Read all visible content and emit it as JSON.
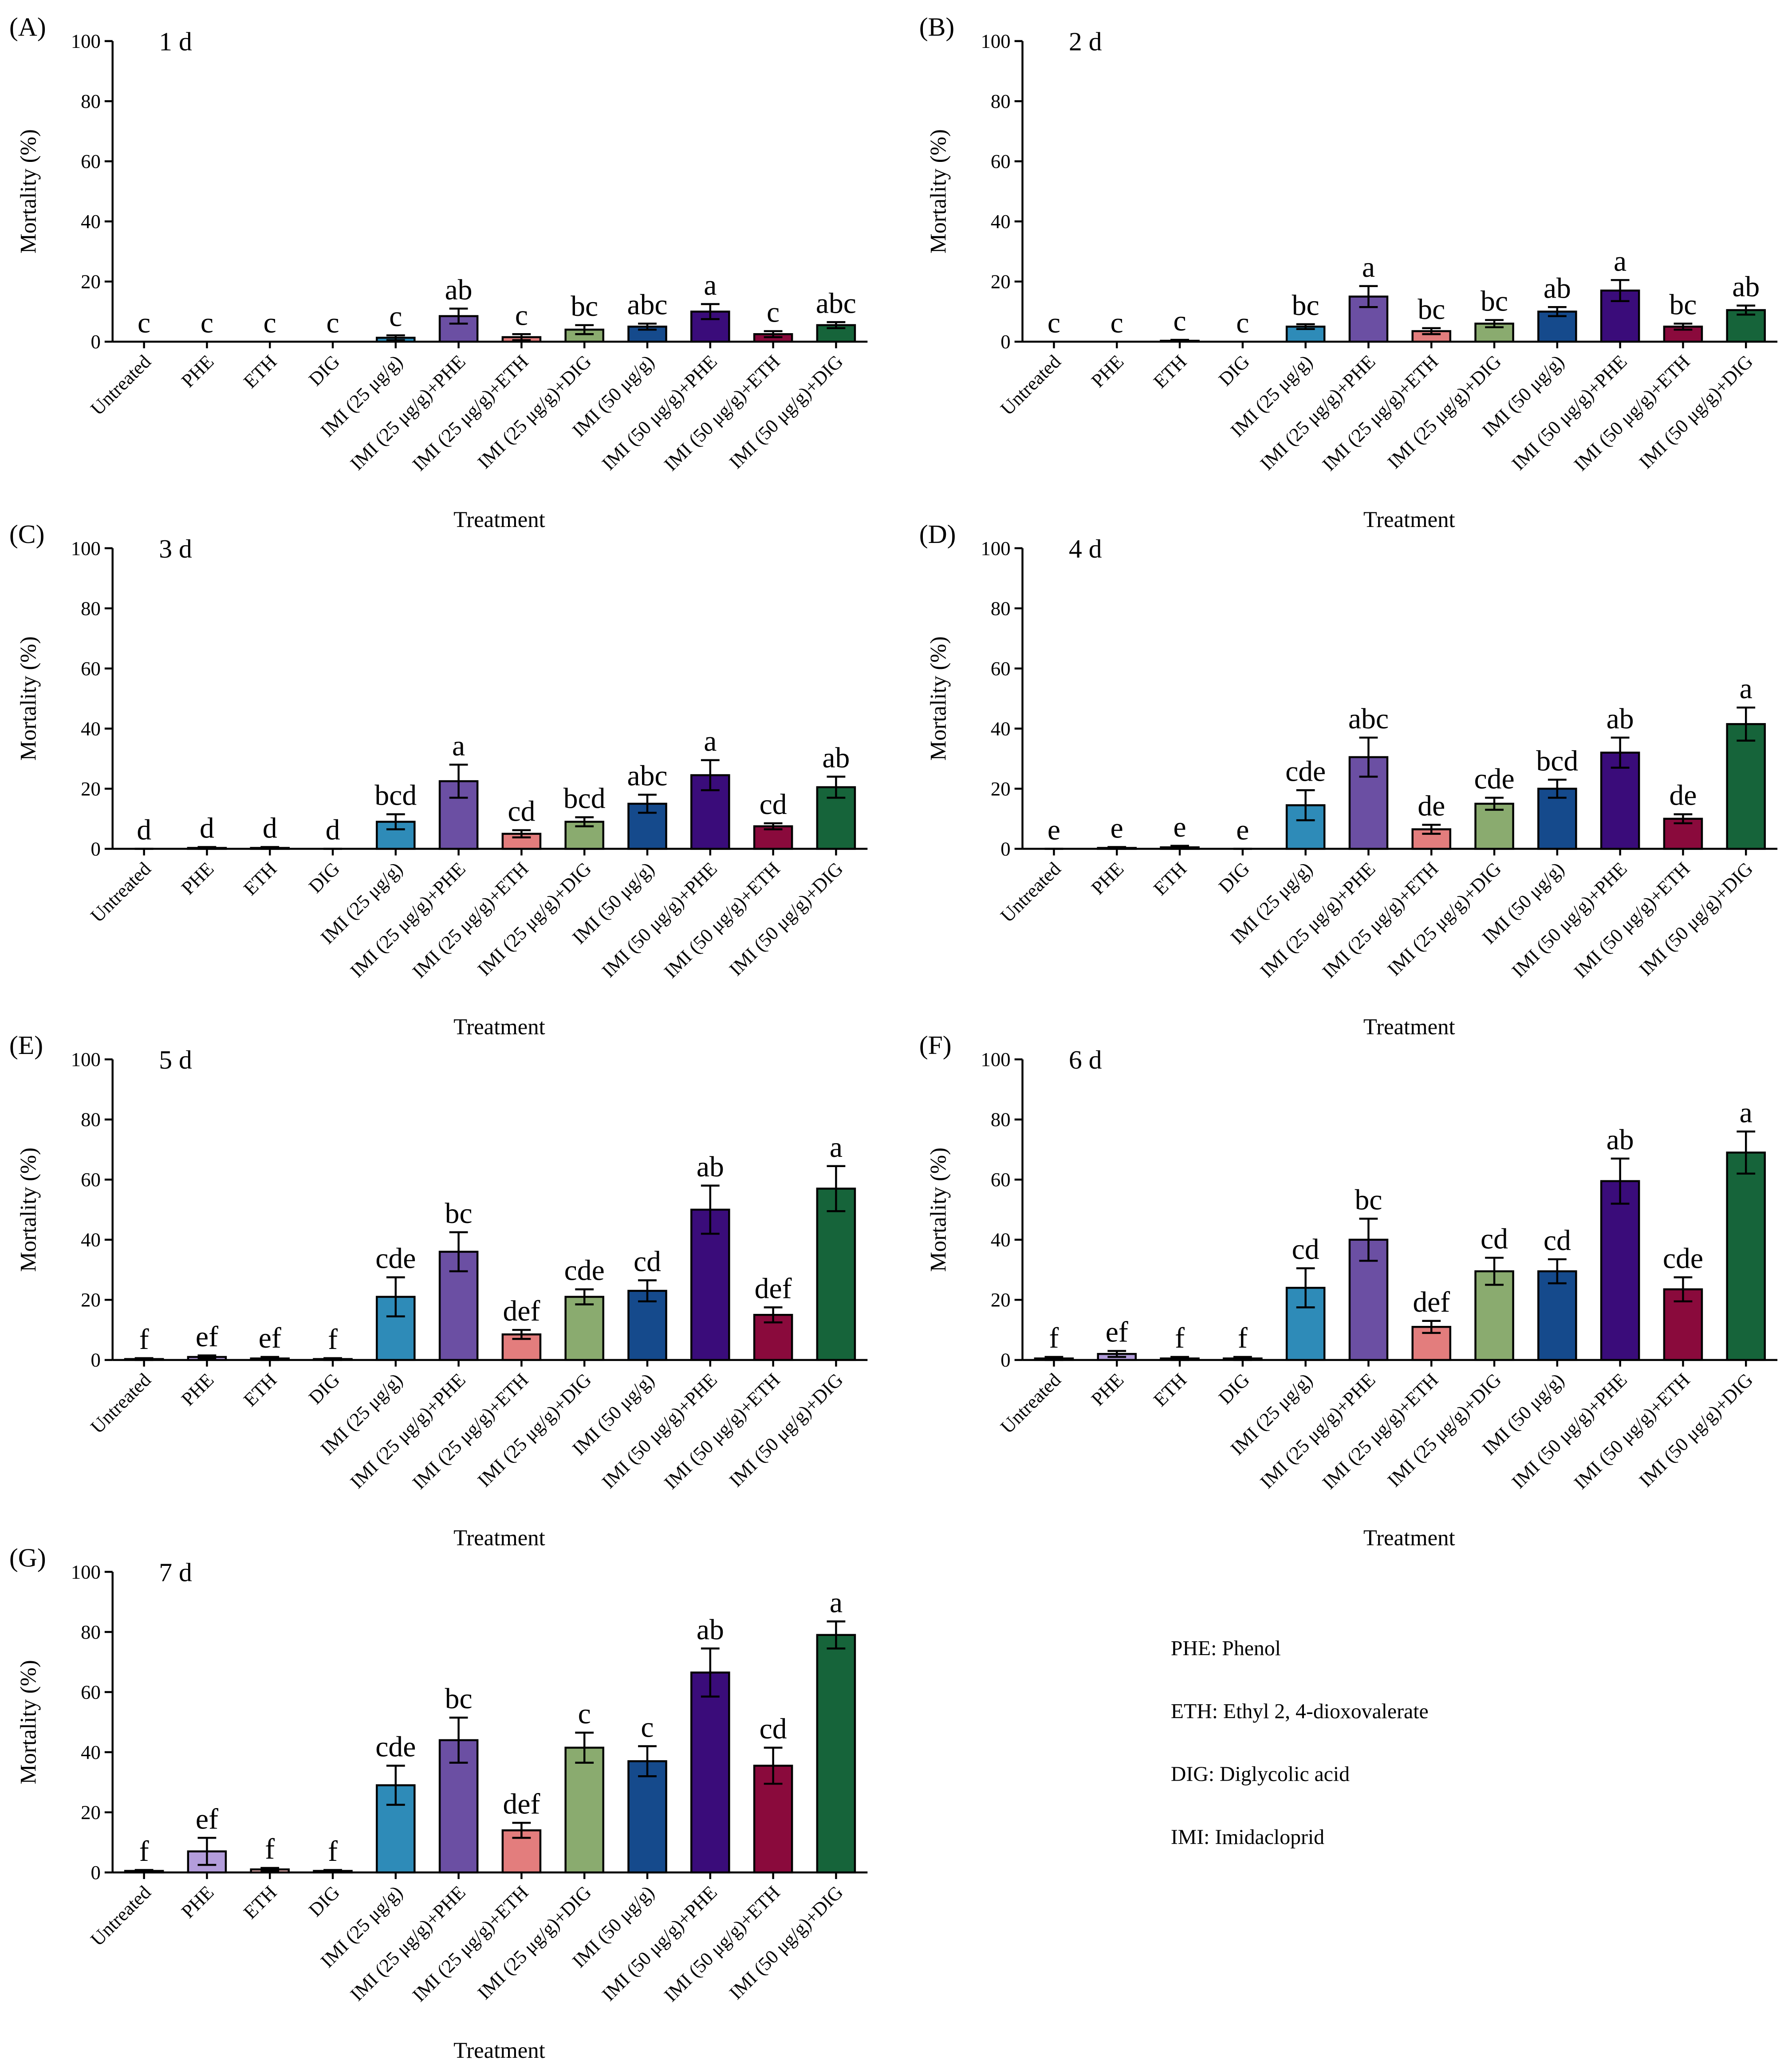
{
  "chart_data": [
    {
      "type": "bar",
      "panel": "(A)",
      "title": "1 d",
      "ylabel": "Mortality (%)",
      "xlabel": "Treatment",
      "categories": [
        "Untreated",
        "PHE",
        "ETH",
        "DIG",
        "IMI (25 μg/g)",
        "IMI (25 μg/g)+PHE",
        "IMI (25 μg/g)+ETH",
        "IMI (25 μg/g)+DIG",
        "IMI (50 μg/g)",
        "IMI (50 μg/g)+PHE",
        "IMI (50 μg/g)+ETH",
        "IMI (50 μg/g)+DIG"
      ],
      "values": [
        0,
        0,
        0,
        0,
        1.3,
        8.5,
        1.5,
        4,
        5,
        10,
        2.5,
        5.5
      ],
      "errors": [
        0,
        0,
        0,
        0,
        0.8,
        2.5,
        1,
        1.5,
        1,
        2.5,
        1,
        1
      ],
      "annotations": [
        "c",
        "c",
        "c",
        "c",
        "c",
        "ab",
        "c",
        "bc",
        "abc",
        "a",
        "c",
        "abc"
      ],
      "colors": [
        "#d9d9d9",
        "#b39ddb",
        "#f2b8b8",
        "#c7dcb4",
        "#2e8bb8",
        "#6b4fa3",
        "#e37d7d",
        "#8aab6f",
        "#154a8c",
        "#3a0c7a",
        "#8a0a3c",
        "#16643a"
      ],
      "ylim": [
        0,
        100
      ],
      "yticks": [
        0,
        20,
        40,
        60,
        80,
        100
      ]
    },
    {
      "type": "bar",
      "panel": "(B)",
      "title": "2 d",
      "ylabel": "Mortality (%)",
      "xlabel": "Treatment",
      "categories": [
        "Untreated",
        "PHE",
        "ETH",
        "DIG",
        "IMI (25 μg/g)",
        "IMI (25 μg/g)+PHE",
        "IMI (25 μg/g)+ETH",
        "IMI (25 μg/g)+DIG",
        "IMI (50 μg/g)",
        "IMI (50 μg/g)+PHE",
        "IMI (50 μg/g)+ETH",
        "IMI (50 μg/g)+DIG"
      ],
      "values": [
        0,
        0,
        0.3,
        0,
        5,
        15,
        3.5,
        6,
        10,
        17,
        5,
        10.5
      ],
      "errors": [
        0,
        0,
        0.3,
        0,
        0.8,
        3.5,
        1,
        1.2,
        1.5,
        3.5,
        1,
        1.5
      ],
      "annotations": [
        "c",
        "c",
        "c",
        "c",
        "bc",
        "a",
        "bc",
        "bc",
        "ab",
        "a",
        "bc",
        "ab"
      ],
      "colors": [
        "#d9d9d9",
        "#b39ddb",
        "#f2b8b8",
        "#c7dcb4",
        "#2e8bb8",
        "#6b4fa3",
        "#e37d7d",
        "#8aab6f",
        "#154a8c",
        "#3a0c7a",
        "#8a0a3c",
        "#16643a"
      ],
      "ylim": [
        0,
        100
      ],
      "yticks": [
        0,
        20,
        40,
        60,
        80,
        100
      ]
    },
    {
      "type": "bar",
      "panel": "(C)",
      "title": "3 d",
      "ylabel": "Mortality (%)",
      "xlabel": "Treatment",
      "categories": [
        "Untreated",
        "PHE",
        "ETH",
        "DIG",
        "IMI (25 μg/g)",
        "IMI (25 μg/g)+PHE",
        "IMI (25 μg/g)+ETH",
        "IMI (25 μg/g)+DIG",
        "IMI (50 μg/g)",
        "IMI (50 μg/g)+PHE",
        "IMI (50 μg/g)+ETH",
        "IMI (50 μg/g)+DIG"
      ],
      "values": [
        0,
        0.3,
        0.3,
        0,
        9,
        22.5,
        5,
        9,
        15,
        24.5,
        7.5,
        20.5
      ],
      "errors": [
        0,
        0.3,
        0.3,
        0,
        2.5,
        5.5,
        1.2,
        1.5,
        3,
        5,
        1,
        3.5
      ],
      "annotations": [
        "d",
        "d",
        "d",
        "d",
        "bcd",
        "a",
        "cd",
        "bcd",
        "abc",
        "a",
        "cd",
        "ab"
      ],
      "colors": [
        "#d9d9d9",
        "#b39ddb",
        "#f2b8b8",
        "#c7dcb4",
        "#2e8bb8",
        "#6b4fa3",
        "#e37d7d",
        "#8aab6f",
        "#154a8c",
        "#3a0c7a",
        "#8a0a3c",
        "#16643a"
      ],
      "ylim": [
        0,
        100
      ],
      "yticks": [
        0,
        20,
        40,
        60,
        80,
        100
      ]
    },
    {
      "type": "bar",
      "panel": "(D)",
      "title": "4 d",
      "ylabel": "Mortality (%)",
      "xlabel": "Treatment",
      "categories": [
        "Untreated",
        "PHE",
        "ETH",
        "DIG",
        "IMI (25 μg/g)",
        "IMI (25 μg/g)+PHE",
        "IMI (25 μg/g)+ETH",
        "IMI (25 μg/g)+DIG",
        "IMI (50 μg/g)",
        "IMI (50 μg/g)+PHE",
        "IMI (50 μg/g)+ETH",
        "IMI (50 μg/g)+DIG"
      ],
      "values": [
        0,
        0.3,
        0.5,
        0,
        14.5,
        30.5,
        6.5,
        15,
        20,
        32,
        10,
        41.5
      ],
      "errors": [
        0,
        0.3,
        0.5,
        0,
        5,
        6.5,
        1.5,
        2,
        3,
        5,
        1.5,
        5.5
      ],
      "annotations": [
        "e",
        "e",
        "e",
        "e",
        "cde",
        "abc",
        "de",
        "cde",
        "bcd",
        "ab",
        "de",
        "a"
      ],
      "colors": [
        "#d9d9d9",
        "#b39ddb",
        "#f2b8b8",
        "#c7dcb4",
        "#2e8bb8",
        "#6b4fa3",
        "#e37d7d",
        "#8aab6f",
        "#154a8c",
        "#3a0c7a",
        "#8a0a3c",
        "#16643a"
      ],
      "ylim": [
        0,
        100
      ],
      "yticks": [
        0,
        20,
        40,
        60,
        80,
        100
      ]
    },
    {
      "type": "bar",
      "panel": "(E)",
      "title": "5 d",
      "ylabel": "Mortality (%)",
      "xlabel": "Treatment",
      "categories": [
        "Untreated",
        "PHE",
        "ETH",
        "DIG",
        "IMI (25 μg/g)",
        "IMI (25 μg/g)+PHE",
        "IMI (25 μg/g)+ETH",
        "IMI (25 μg/g)+DIG",
        "IMI (50 μg/g)",
        "IMI (50 μg/g)+PHE",
        "IMI (50 μg/g)+ETH",
        "IMI (50 μg/g)+DIG"
      ],
      "values": [
        0.3,
        1,
        0.5,
        0.3,
        21,
        36,
        8.5,
        21,
        23,
        50,
        15,
        57
      ],
      "errors": [
        0.3,
        0.5,
        0.5,
        0.3,
        6.5,
        6.5,
        1.5,
        2.5,
        3.5,
        8,
        2.5,
        7.5
      ],
      "annotations": [
        "f",
        "ef",
        "ef",
        "f",
        "cde",
        "bc",
        "def",
        "cde",
        "cd",
        "ab",
        "def",
        "a"
      ],
      "colors": [
        "#d9d9d9",
        "#b39ddb",
        "#f2b8b8",
        "#c7dcb4",
        "#2e8bb8",
        "#6b4fa3",
        "#e37d7d",
        "#8aab6f",
        "#154a8c",
        "#3a0c7a",
        "#8a0a3c",
        "#16643a"
      ],
      "ylim": [
        0,
        100
      ],
      "yticks": [
        0,
        20,
        40,
        60,
        80,
        100
      ]
    },
    {
      "type": "bar",
      "panel": "(F)",
      "title": "6 d",
      "ylabel": "Mortality (%)",
      "xlabel": "Treatment",
      "categories": [
        "Untreated",
        "PHE",
        "ETH",
        "DIG",
        "IMI (25 μg/g)",
        "IMI (25 μg/g)+PHE",
        "IMI (25 μg/g)+ETH",
        "IMI (25 μg/g)+DIG",
        "IMI (50 μg/g)",
        "IMI (50 μg/g)+PHE",
        "IMI (50 μg/g)+ETH",
        "IMI (50 μg/g)+DIG"
      ],
      "values": [
        0.5,
        2,
        0.5,
        0.5,
        24,
        40,
        11,
        29.5,
        29.5,
        59.5,
        23.5,
        69
      ],
      "errors": [
        0.5,
        1,
        0.5,
        0.5,
        6.5,
        7,
        2,
        4.5,
        4,
        7.5,
        4,
        7
      ],
      "annotations": [
        "f",
        "ef",
        "f",
        "f",
        "cd",
        "bc",
        "def",
        "cd",
        "cd",
        "ab",
        "cde",
        "a"
      ],
      "colors": [
        "#d9d9d9",
        "#b39ddb",
        "#f2b8b8",
        "#c7dcb4",
        "#2e8bb8",
        "#6b4fa3",
        "#e37d7d",
        "#8aab6f",
        "#154a8c",
        "#3a0c7a",
        "#8a0a3c",
        "#16643a"
      ],
      "ylim": [
        0,
        100
      ],
      "yticks": [
        0,
        20,
        40,
        60,
        80,
        100
      ]
    },
    {
      "type": "bar",
      "panel": "(G)",
      "title": "7 d",
      "ylabel": "Mortality (%)",
      "xlabel": "Treatment",
      "categories": [
        "Untreated",
        "PHE",
        "ETH",
        "DIG",
        "IMI (25 μg/g)",
        "IMI (25 μg/g)+PHE",
        "IMI (25 μg/g)+ETH",
        "IMI (25 μg/g)+DIG",
        "IMI (50 μg/g)",
        "IMI (50 μg/g)+PHE",
        "IMI (50 μg/g)+ETH",
        "IMI (50 μg/g)+DIG"
      ],
      "values": [
        0.5,
        7,
        1,
        0.5,
        29,
        44,
        14,
        41.5,
        37,
        66.5,
        35.5,
        79
      ],
      "errors": [
        0.3,
        4.5,
        0.5,
        0.3,
        6.5,
        7.5,
        2.5,
        5,
        5,
        8,
        6,
        4.5
      ],
      "annotations": [
        "f",
        "ef",
        "f",
        "f",
        "cde",
        "bc",
        "def",
        "c",
        "c",
        "ab",
        "cd",
        "a"
      ],
      "colors": [
        "#d9d9d9",
        "#b39ddb",
        "#f2b8b8",
        "#c7dcb4",
        "#2e8bb8",
        "#6b4fa3",
        "#e37d7d",
        "#8aab6f",
        "#154a8c",
        "#3a0c7a",
        "#8a0a3c",
        "#16643a"
      ],
      "ylim": [
        0,
        100
      ],
      "yticks": [
        0,
        20,
        40,
        60,
        80,
        100
      ]
    }
  ],
  "notes": [
    "PHE: Phenol",
    "ETH: Ethyl 2, 4-dioxovalerate",
    "DIG: Diglycolic acid",
    "IMI: Imidacloprid"
  ]
}
